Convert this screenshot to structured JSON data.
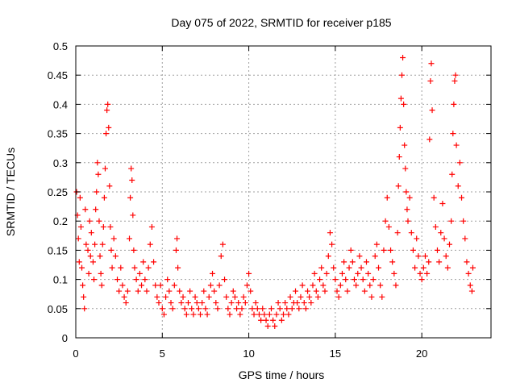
{
  "chart_data": {
    "type": "scatter",
    "title": "Day 075 of 2022, SRMTID for receiver p185",
    "xlabel": "GPS time / hours",
    "ylabel": "SRMTID / TECUs",
    "xlim": [
      0,
      24
    ],
    "ylim": [
      0,
      0.5
    ],
    "xticks": [
      0,
      5,
      10,
      15,
      20
    ],
    "yticks": [
      0,
      0.05,
      0.1,
      0.15,
      0.2,
      0.25,
      0.3,
      0.35,
      0.4,
      0.45,
      0.5
    ],
    "xtick_labels": [
      "0",
      "5",
      "10",
      "15",
      "20"
    ],
    "ytick_labels": [
      "0",
      "0.05",
      "0.1",
      "0.15",
      "0.2",
      "0.25",
      "0.3",
      "0.35",
      "0.4",
      "0.45",
      "0.5"
    ],
    "grid": true,
    "marker": "+",
    "series": [
      {
        "name": "SRMTID",
        "color": "#ff0000",
        "points": [
          [
            0.05,
            0.25
          ],
          [
            0.1,
            0.21
          ],
          [
            0.15,
            0.17
          ],
          [
            0.2,
            0.13
          ],
          [
            0.25,
            0.24
          ],
          [
            0.3,
            0.19
          ],
          [
            0.35,
            0.12
          ],
          [
            0.4,
            0.09
          ],
          [
            0.45,
            0.07
          ],
          [
            0.5,
            0.05
          ],
          [
            0.55,
            0.22
          ],
          [
            0.6,
            0.16
          ],
          [
            0.7,
            0.15
          ],
          [
            0.75,
            0.11
          ],
          [
            0.8,
            0.2
          ],
          [
            0.85,
            0.14
          ],
          [
            0.9,
            0.18
          ],
          [
            1.0,
            0.13
          ],
          [
            1.05,
            0.1
          ],
          [
            1.1,
            0.16
          ],
          [
            1.15,
            0.22
          ],
          [
            1.2,
            0.25
          ],
          [
            1.25,
            0.3
          ],
          [
            1.3,
            0.28
          ],
          [
            1.35,
            0.2
          ],
          [
            1.4,
            0.14
          ],
          [
            1.45,
            0.11
          ],
          [
            1.5,
            0.09
          ],
          [
            1.55,
            0.16
          ],
          [
            1.6,
            0.19
          ],
          [
            1.65,
            0.24
          ],
          [
            1.7,
            0.29
          ],
          [
            1.75,
            0.35
          ],
          [
            1.8,
            0.39
          ],
          [
            1.85,
            0.4
          ],
          [
            1.9,
            0.36
          ],
          [
            1.95,
            0.26
          ],
          [
            2.0,
            0.19
          ],
          [
            2.05,
            0.15
          ],
          [
            2.1,
            0.12
          ],
          [
            2.2,
            0.17
          ],
          [
            2.3,
            0.14
          ],
          [
            2.4,
            0.1
          ],
          [
            2.5,
            0.08
          ],
          [
            2.6,
            0.12
          ],
          [
            2.7,
            0.09
          ],
          [
            2.8,
            0.07
          ],
          [
            2.9,
            0.06
          ],
          [
            3.0,
            0.08
          ],
          [
            3.1,
            0.17
          ],
          [
            3.15,
            0.24
          ],
          [
            3.2,
            0.29
          ],
          [
            3.25,
            0.27
          ],
          [
            3.3,
            0.21
          ],
          [
            3.35,
            0.15
          ],
          [
            3.4,
            0.12
          ],
          [
            3.5,
            0.1
          ],
          [
            3.6,
            0.08
          ],
          [
            3.7,
            0.11
          ],
          [
            3.8,
            0.09
          ],
          [
            3.9,
            0.13
          ],
          [
            4.0,
            0.1
          ],
          [
            4.1,
            0.08
          ],
          [
            4.2,
            0.12
          ],
          [
            4.3,
            0.16
          ],
          [
            4.4,
            0.19
          ],
          [
            4.5,
            0.13
          ],
          [
            4.6,
            0.09
          ],
          [
            4.7,
            0.07
          ],
          [
            4.8,
            0.06
          ],
          [
            4.9,
            0.09
          ],
          [
            5.0,
            0.05
          ],
          [
            5.1,
            0.04
          ],
          [
            5.2,
            0.07
          ],
          [
            5.3,
            0.1
          ],
          [
            5.4,
            0.08
          ],
          [
            5.5,
            0.06
          ],
          [
            5.6,
            0.05
          ],
          [
            5.7,
            0.09
          ],
          [
            5.8,
            0.15
          ],
          [
            5.85,
            0.17
          ],
          [
            5.9,
            0.12
          ],
          [
            6.0,
            0.08
          ],
          [
            6.1,
            0.06
          ],
          [
            6.2,
            0.07
          ],
          [
            6.3,
            0.05
          ],
          [
            6.4,
            0.04
          ],
          [
            6.5,
            0.06
          ],
          [
            6.6,
            0.08
          ],
          [
            6.7,
            0.05
          ],
          [
            6.8,
            0.04
          ],
          [
            6.9,
            0.07
          ],
          [
            7.0,
            0.06
          ],
          [
            7.1,
            0.05
          ],
          [
            7.2,
            0.04
          ],
          [
            7.3,
            0.06
          ],
          [
            7.4,
            0.08
          ],
          [
            7.5,
            0.05
          ],
          [
            7.6,
            0.04
          ],
          [
            7.7,
            0.07
          ],
          [
            7.8,
            0.09
          ],
          [
            7.9,
            0.11
          ],
          [
            8.0,
            0.08
          ],
          [
            8.1,
            0.06
          ],
          [
            8.2,
            0.05
          ],
          [
            8.3,
            0.09
          ],
          [
            8.4,
            0.14
          ],
          [
            8.5,
            0.16
          ],
          [
            8.6,
            0.1
          ],
          [
            8.7,
            0.07
          ],
          [
            8.8,
            0.05
          ],
          [
            8.9,
            0.04
          ],
          [
            9.0,
            0.06
          ],
          [
            9.1,
            0.08
          ],
          [
            9.2,
            0.07
          ],
          [
            9.3,
            0.05
          ],
          [
            9.4,
            0.06
          ],
          [
            9.5,
            0.04
          ],
          [
            9.6,
            0.05
          ],
          [
            9.7,
            0.07
          ],
          [
            9.8,
            0.06
          ],
          [
            9.9,
            0.09
          ],
          [
            10.0,
            0.11
          ],
          [
            10.1,
            0.08
          ],
          [
            10.2,
            0.05
          ],
          [
            10.3,
            0.04
          ],
          [
            10.4,
            0.06
          ],
          [
            10.5,
            0.05
          ],
          [
            10.6,
            0.04
          ],
          [
            10.7,
            0.03
          ],
          [
            10.8,
            0.05
          ],
          [
            10.9,
            0.04
          ],
          [
            11.0,
            0.03
          ],
          [
            11.1,
            0.02
          ],
          [
            11.2,
            0.04
          ],
          [
            11.3,
            0.05
          ],
          [
            11.4,
            0.03
          ],
          [
            11.5,
            0.02
          ],
          [
            11.6,
            0.04
          ],
          [
            11.7,
            0.06
          ],
          [
            11.8,
            0.05
          ],
          [
            11.9,
            0.03
          ],
          [
            12.0,
            0.04
          ],
          [
            12.1,
            0.06
          ],
          [
            12.2,
            0.05
          ],
          [
            12.3,
            0.04
          ],
          [
            12.4,
            0.07
          ],
          [
            12.5,
            0.05
          ],
          [
            12.6,
            0.06
          ],
          [
            12.7,
            0.08
          ],
          [
            12.8,
            0.06
          ],
          [
            12.9,
            0.05
          ],
          [
            13.0,
            0.07
          ],
          [
            13.1,
            0.09
          ],
          [
            13.2,
            0.06
          ],
          [
            13.3,
            0.05
          ],
          [
            13.4,
            0.08
          ],
          [
            13.5,
            0.07
          ],
          [
            13.6,
            0.06
          ],
          [
            13.7,
            0.09
          ],
          [
            13.8,
            0.11
          ],
          [
            13.9,
            0.08
          ],
          [
            14.0,
            0.07
          ],
          [
            14.1,
            0.1
          ],
          [
            14.2,
            0.12
          ],
          [
            14.3,
            0.09
          ],
          [
            14.4,
            0.08
          ],
          [
            14.5,
            0.11
          ],
          [
            14.6,
            0.14
          ],
          [
            14.7,
            0.18
          ],
          [
            14.8,
            0.16
          ],
          [
            14.9,
            0.12
          ],
          [
            15.0,
            0.1
          ],
          [
            15.1,
            0.08
          ],
          [
            15.2,
            0.07
          ],
          [
            15.3,
            0.09
          ],
          [
            15.4,
            0.11
          ],
          [
            15.5,
            0.13
          ],
          [
            15.6,
            0.1
          ],
          [
            15.7,
            0.08
          ],
          [
            15.8,
            0.12
          ],
          [
            15.9,
            0.15
          ],
          [
            16.0,
            0.13
          ],
          [
            16.1,
            0.1
          ],
          [
            16.2,
            0.09
          ],
          [
            16.3,
            0.11
          ],
          [
            16.4,
            0.14
          ],
          [
            16.5,
            0.12
          ],
          [
            16.6,
            0.1
          ],
          [
            16.7,
            0.08
          ],
          [
            16.8,
            0.13
          ],
          [
            16.9,
            0.11
          ],
          [
            17.0,
            0.09
          ],
          [
            17.1,
            0.07
          ],
          [
            17.2,
            0.1
          ],
          [
            17.3,
            0.14
          ],
          [
            17.4,
            0.16
          ],
          [
            17.5,
            0.12
          ],
          [
            17.6,
            0.09
          ],
          [
            17.7,
            0.07
          ],
          [
            17.8,
            0.15
          ],
          [
            17.9,
            0.2
          ],
          [
            18.0,
            0.24
          ],
          [
            18.1,
            0.19
          ],
          [
            18.2,
            0.15
          ],
          [
            18.3,
            0.13
          ],
          [
            18.4,
            0.11
          ],
          [
            18.5,
            0.09
          ],
          [
            18.6,
            0.18
          ],
          [
            18.65,
            0.26
          ],
          [
            18.7,
            0.31
          ],
          [
            18.75,
            0.36
          ],
          [
            18.8,
            0.41
          ],
          [
            18.85,
            0.45
          ],
          [
            18.9,
            0.48
          ],
          [
            18.95,
            0.4
          ],
          [
            19.0,
            0.33
          ],
          [
            19.05,
            0.29
          ],
          [
            19.1,
            0.25
          ],
          [
            19.15,
            0.22
          ],
          [
            19.2,
            0.2
          ],
          [
            19.3,
            0.24
          ],
          [
            19.4,
            0.18
          ],
          [
            19.5,
            0.15
          ],
          [
            19.6,
            0.12
          ],
          [
            19.7,
            0.17
          ],
          [
            19.8,
            0.14
          ],
          [
            19.9,
            0.11
          ],
          [
            20.0,
            0.1
          ],
          [
            20.1,
            0.12
          ],
          [
            20.2,
            0.14
          ],
          [
            20.3,
            0.11
          ],
          [
            20.4,
            0.13
          ],
          [
            20.45,
            0.34
          ],
          [
            20.5,
            0.44
          ],
          [
            20.55,
            0.47
          ],
          [
            20.6,
            0.39
          ],
          [
            20.7,
            0.24
          ],
          [
            20.8,
            0.19
          ],
          [
            20.9,
            0.15
          ],
          [
            21.0,
            0.13
          ],
          [
            21.1,
            0.18
          ],
          [
            21.2,
            0.23
          ],
          [
            21.3,
            0.17
          ],
          [
            21.4,
            0.14
          ],
          [
            21.5,
            0.12
          ],
          [
            21.6,
            0.16
          ],
          [
            21.7,
            0.2
          ],
          [
            21.75,
            0.28
          ],
          [
            21.8,
            0.35
          ],
          [
            21.85,
            0.4
          ],
          [
            21.9,
            0.44
          ],
          [
            21.95,
            0.45
          ],
          [
            22.0,
            0.33
          ],
          [
            22.1,
            0.26
          ],
          [
            22.2,
            0.3
          ],
          [
            22.3,
            0.24
          ],
          [
            22.4,
            0.2
          ],
          [
            22.5,
            0.17
          ],
          [
            22.6,
            0.13
          ],
          [
            22.7,
            0.11
          ],
          [
            22.8,
            0.09
          ],
          [
            22.9,
            0.08
          ],
          [
            22.95,
            0.12
          ]
        ]
      }
    ]
  }
}
